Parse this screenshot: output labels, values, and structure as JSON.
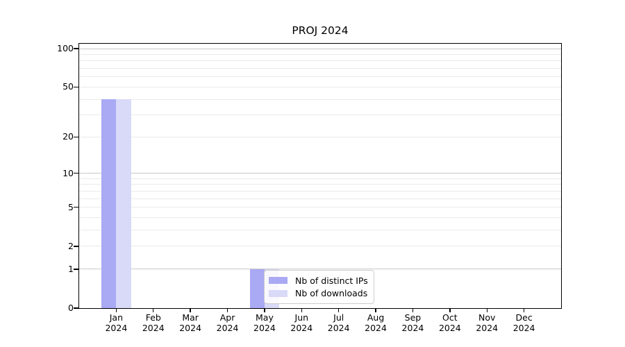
{
  "chart_data": {
    "type": "bar",
    "title": "PROJ 2024",
    "categories": [
      "Jan",
      "Feb",
      "Mar",
      "Apr",
      "May",
      "Jun",
      "Jul",
      "Aug",
      "Sep",
      "Oct",
      "Nov",
      "Dec"
    ],
    "category_year": "2024",
    "series": [
      {
        "name": "Nb of distinct IPs",
        "color": "#a9a9f4",
        "values": [
          40,
          0,
          0,
          0,
          1,
          0,
          0,
          0,
          0,
          0,
          0,
          0
        ]
      },
      {
        "name": "Nb of downloads",
        "color": "#d9d9f8",
        "values": [
          40,
          0,
          0,
          0,
          1,
          0,
          0,
          0,
          0,
          0,
          0,
          0
        ]
      }
    ],
    "xlabel": "",
    "ylabel": "",
    "yscale": "log1p",
    "ylim": [
      0,
      110
    ],
    "yticks": [
      0,
      1,
      2,
      5,
      10,
      20,
      50,
      100
    ],
    "major_gridlines": [
      1,
      10,
      100
    ],
    "minor_gridlines": [
      2,
      3,
      4,
      5,
      6,
      7,
      8,
      9,
      20,
      30,
      40,
      50,
      60,
      70,
      80,
      90
    ],
    "grid": "horizontal",
    "legend_position": "lower-center-inside"
  },
  "colors": {
    "background": "#ffffff",
    "axis": "#000000",
    "grid_minor": "#eaeaea",
    "grid_major": "#c8c8c8",
    "legend_border": "#cccccc",
    "bar_distinct_ips": "#a9a9f4",
    "bar_downloads": "#d9d9f8"
  }
}
